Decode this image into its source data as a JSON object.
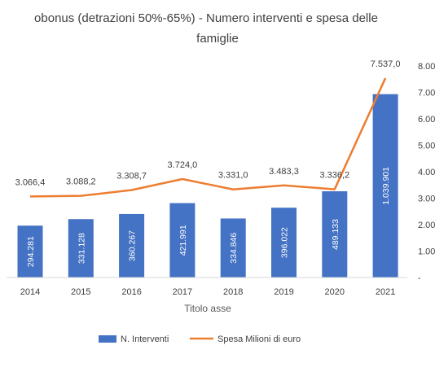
{
  "chart_data": {
    "type": "bar",
    "title_line1": "obonus (detrazioni 50%-65%)  - Numero interventi e spesa delle",
    "title_line2": "famiglie",
    "xlabel": "Titolo asse",
    "categories": [
      "2014",
      "2015",
      "2016",
      "2017",
      "2018",
      "2019",
      "2020",
      "2021"
    ],
    "series": [
      {
        "name": "N. Interventi",
        "type": "bar",
        "color": "#4472c4",
        "values": [
          294281,
          331128,
          360267,
          421991,
          334846,
          396022,
          489133,
          1039901
        ],
        "labels": [
          "294.281",
          "331.128",
          "360.267",
          "421.991",
          "334.846",
          "396.022",
          "489.133",
          "1.039.901"
        ]
      },
      {
        "name": "Spesa Milioni di euro",
        "type": "line",
        "color": "#ed7d31",
        "values": [
          3066.4,
          3088.2,
          3308.7,
          3724.0,
          3331.0,
          3483.3,
          3336.2,
          7537.0
        ],
        "labels": [
          "3.066,4",
          "3.088,2",
          "3.308,7",
          "3.724,0",
          "3.331,0",
          "3.483,3",
          "3.336,2",
          "7.537,0"
        ]
      }
    ],
    "ylim": [
      0,
      8000
    ],
    "y_ticks": [
      0,
      1000,
      2000,
      3000,
      4000,
      5000,
      6000,
      7000,
      8000
    ],
    "y_tick_labels": [
      "-",
      "1.00",
      "2.00",
      "3.00",
      "4.00",
      "5.00",
      "6.00",
      "7.00",
      "8.00"
    ],
    "bar_scale_max": 1200000,
    "legend_position": "bottom"
  }
}
